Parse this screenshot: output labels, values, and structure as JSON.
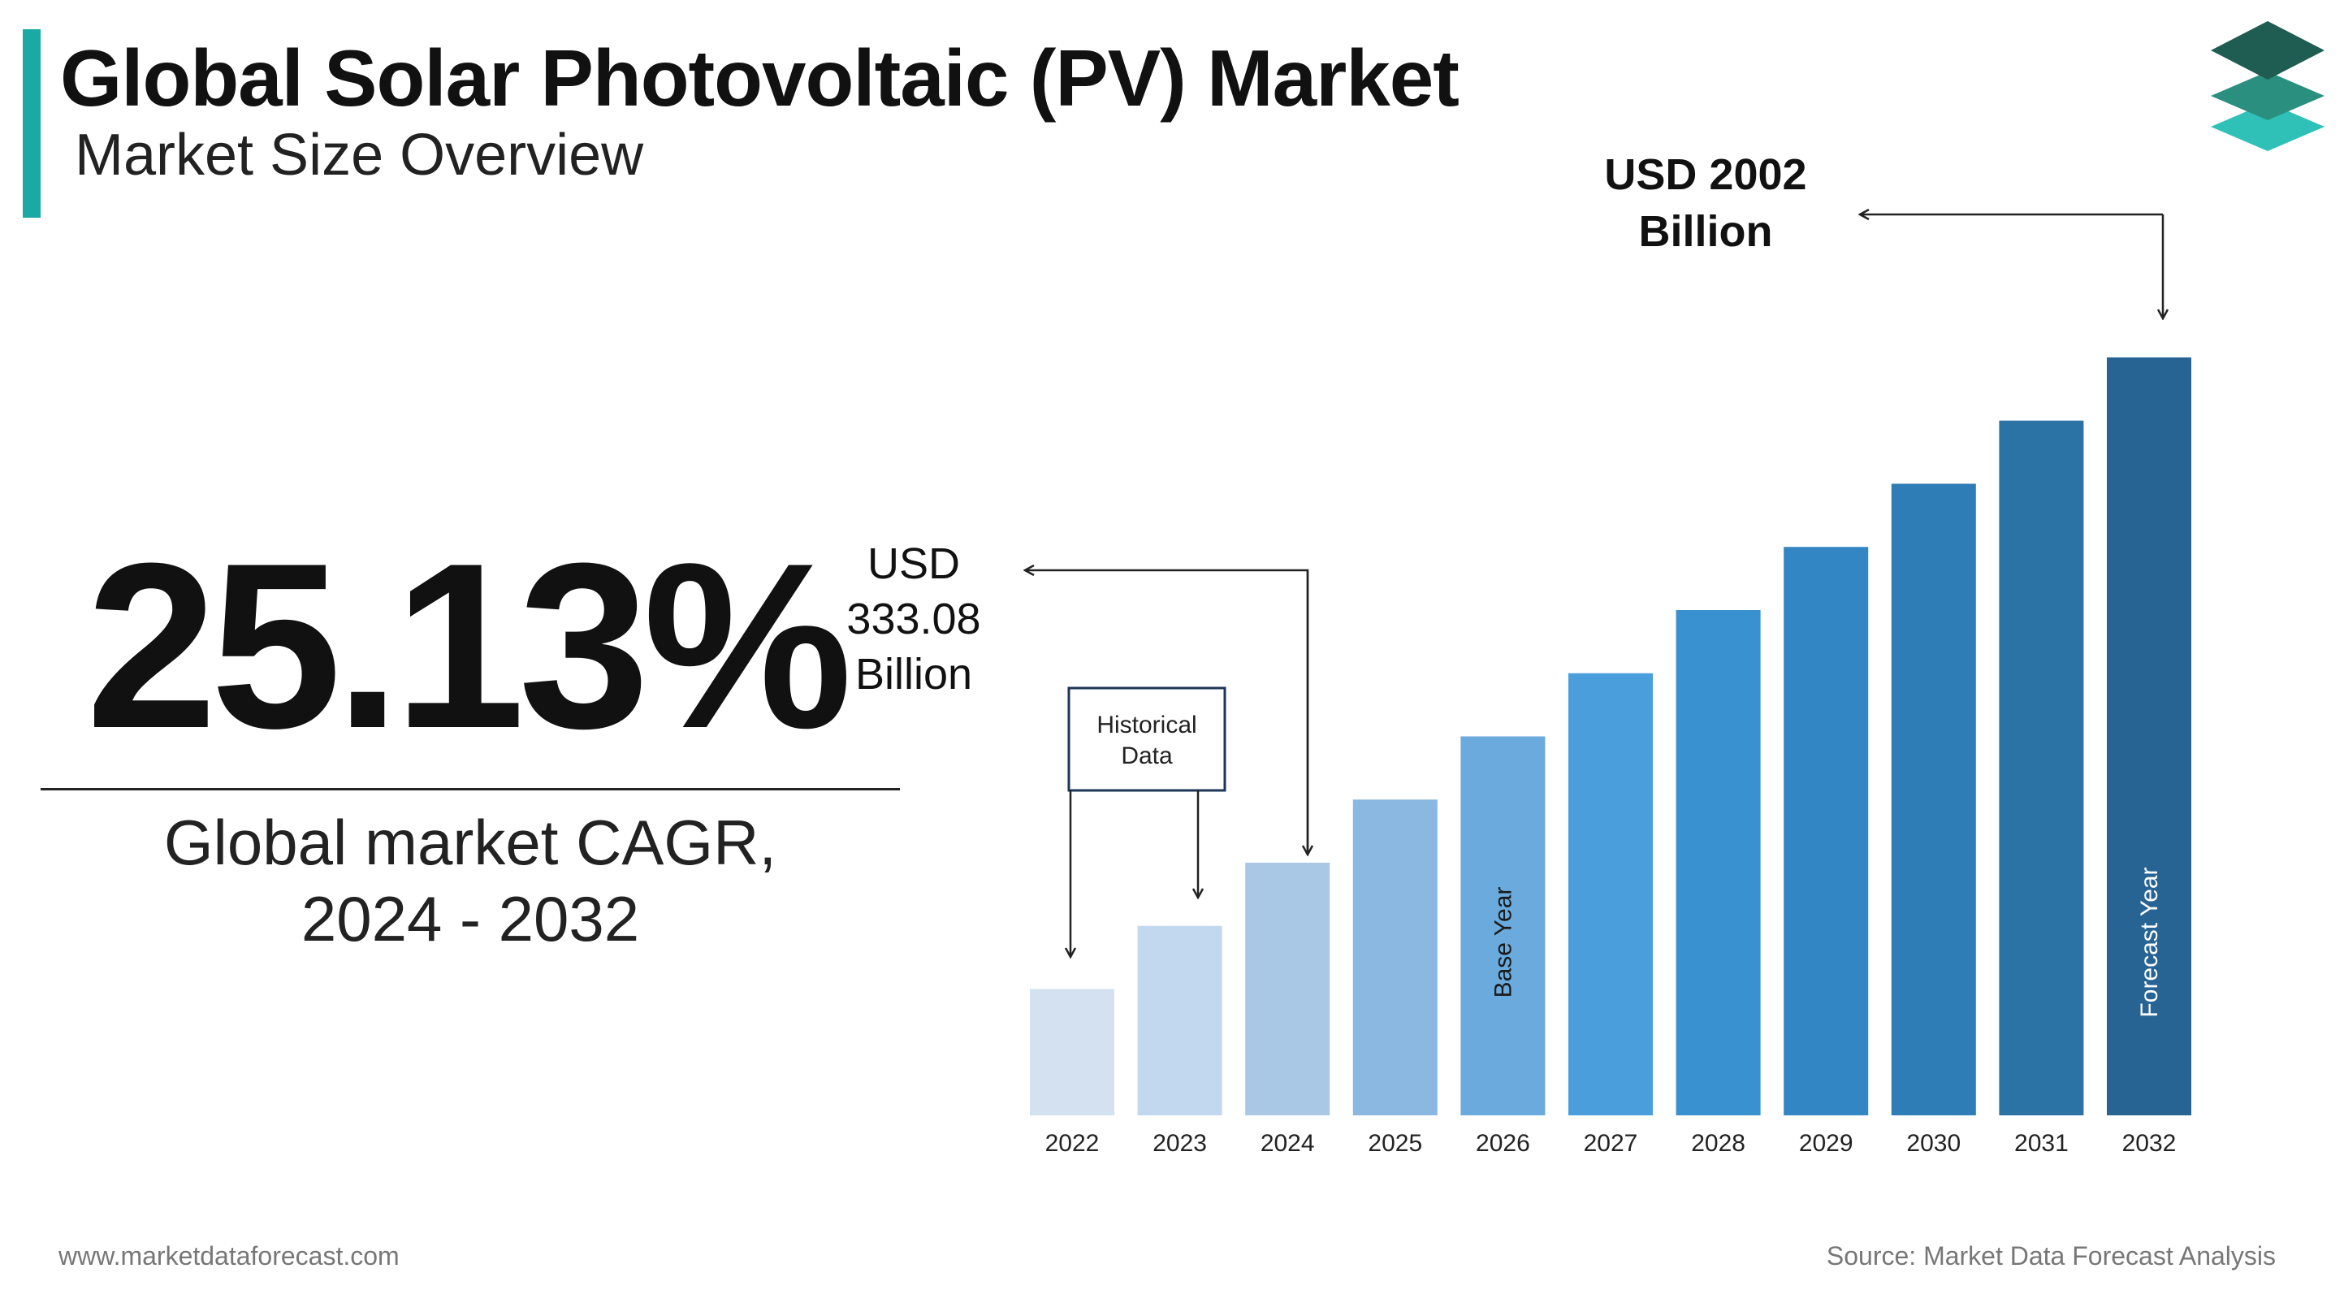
{
  "header": {
    "title": "Global Solar Photovoltaic (PV) Market",
    "subtitle": "Market Size Overview"
  },
  "colors": {
    "accent": "#1aa9a5",
    "logo_dark": "#1f5c52",
    "logo_mid": "#2b8f7f",
    "logo_light": "#2fc1b8"
  },
  "cagr": {
    "value": "25.13%",
    "label_line1": "Global market CAGR,",
    "label_line2": "2024 - 2032"
  },
  "callouts": {
    "start": {
      "line1": "USD",
      "line2": "333.08",
      "line3": "Billion"
    },
    "end": {
      "line1": "USD 2002",
      "line2": "Billion"
    },
    "historical": {
      "line1": "Historical",
      "line2": "Data"
    }
  },
  "chart_data": {
    "type": "bar",
    "categories": [
      "2022",
      "2023",
      "2024",
      "2025",
      "2026",
      "2027",
      "2028",
      "2029",
      "2030",
      "2031",
      "2032"
    ],
    "values": [
      1.0,
      1.5,
      2.0,
      2.5,
      3.0,
      3.5,
      4.0,
      4.5,
      5.0,
      5.5,
      6.0
    ],
    "value_annotations": {
      "2024": "USD 333.08 Billion",
      "2032": "USD 2002 Billion"
    },
    "bar_labels": {
      "2026": "Base Year",
      "2032": "Forecast Year"
    },
    "bar_colors": [
      "#d3e1f1",
      "#c1d8ee",
      "#a8c8e6",
      "#8bb8e0",
      "#6aaadc",
      "#4a9edb",
      "#3a91d0",
      "#3386c4",
      "#2e7db6",
      "#2b72a5",
      "#276493"
    ],
    "title": "",
    "xlabel": "",
    "ylabel": "",
    "grid": false,
    "legend": "none"
  },
  "footer": {
    "website": "www.marketdataforecast.com",
    "source": "Source: Market Data Forecast Analysis"
  }
}
